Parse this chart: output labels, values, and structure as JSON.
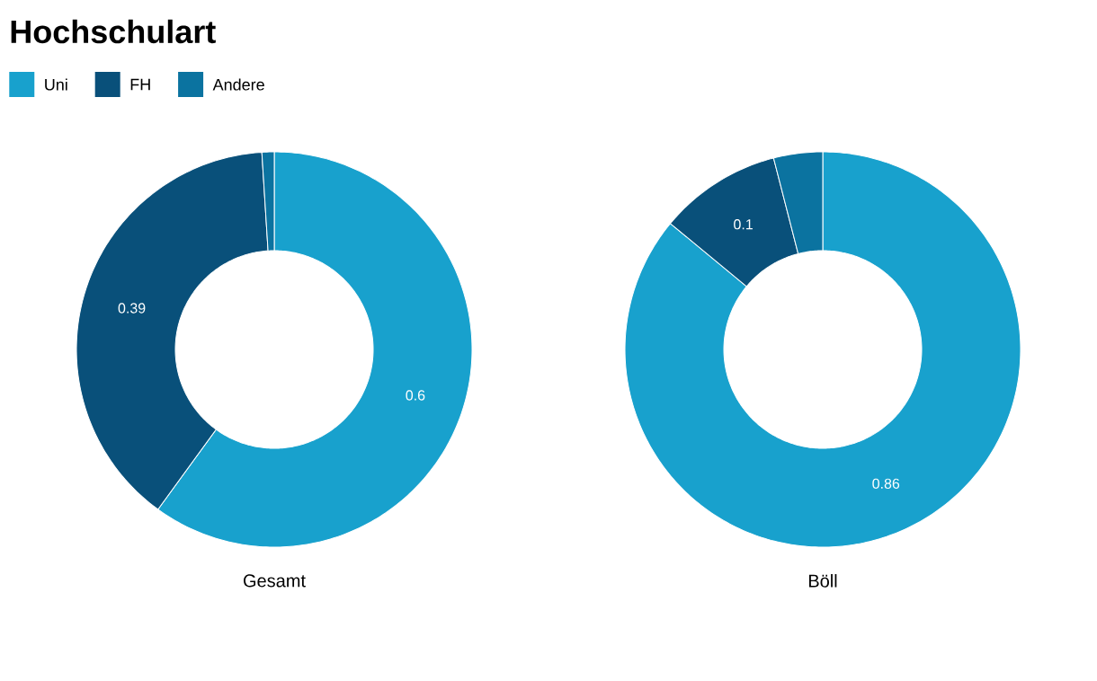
{
  "chart_data": [
    {
      "type": "donut",
      "title": "Hochschulart",
      "xlabel": "Gesamt",
      "legend": "top left",
      "categories": [
        "Uni",
        "FH",
        "Andere"
      ],
      "values": [
        0.6,
        0.39,
        0.01
      ],
      "colors": [
        "#18a1cd",
        "#09507a",
        "#0b73a0"
      ],
      "value_labels": [
        "0.6",
        "0.39",
        null
      ]
    },
    {
      "type": "donut",
      "xlabel": "Böll",
      "values": [
        0.86,
        0.1,
        0.04
      ],
      "colors": [
        "#18a1cd",
        "#09507a",
        "#0b73a0"
      ],
      "value_labels": [
        "0.86",
        "0.1",
        null
      ]
    }
  ]
}
